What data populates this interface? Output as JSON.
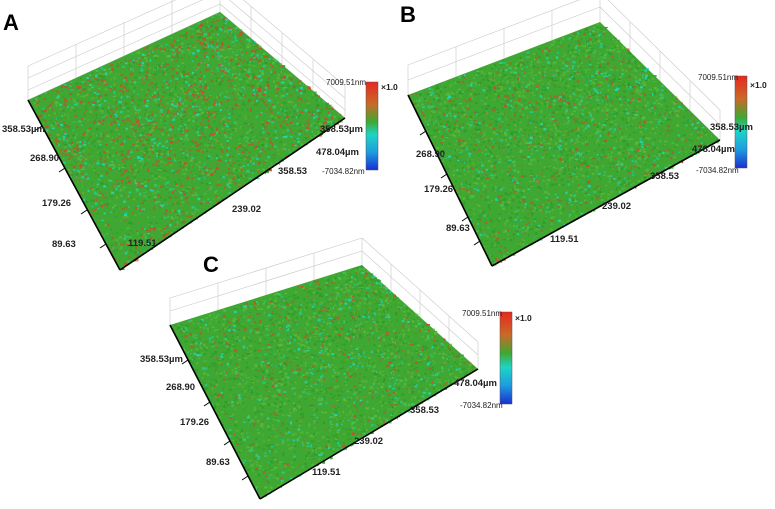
{
  "figure": {
    "panels": [
      {
        "label": "A",
        "y_ticks": [
          "358.53µm",
          "268.90",
          "179.26",
          "89.63"
        ],
        "x_ticks": [
          "119.51",
          "239.02",
          "358.53",
          "478.04µm"
        ],
        "colorbar": {
          "max": "7009.51nm",
          "mid": "358.53µm",
          "min": "-7034.82nm",
          "scale": "×1.0"
        }
      },
      {
        "label": "B",
        "y_ticks": [
          "358.53µm",
          "268.90",
          "179.26",
          "89.63"
        ],
        "x_ticks": [
          "119.51",
          "239.02",
          "358.53",
          "478.04µm"
        ],
        "colorbar": {
          "max": "7009.51nm",
          "min": "-7034.82nm",
          "scale": "×1.0"
        }
      },
      {
        "label": "C",
        "y_ticks": [
          "358.53µm",
          "268.90",
          "179.26",
          "89.63"
        ],
        "x_ticks": [
          "119.51",
          "239.02",
          "358.53",
          "478.04µm"
        ],
        "colorbar": {
          "max": "7009.51nm",
          "min": "-7034.82nm",
          "scale": "×1.0"
        }
      }
    ],
    "colors": {
      "surface_green": "#3fa832",
      "surface_red": "#c0532a",
      "surface_cyan": "#21d4b8",
      "colorbar_top": "#e8281e",
      "colorbar_bottom": "#1a2fd0"
    },
    "surface_roughness": {
      "A": 0.9,
      "B": 0.35,
      "C": 0.3
    }
  }
}
